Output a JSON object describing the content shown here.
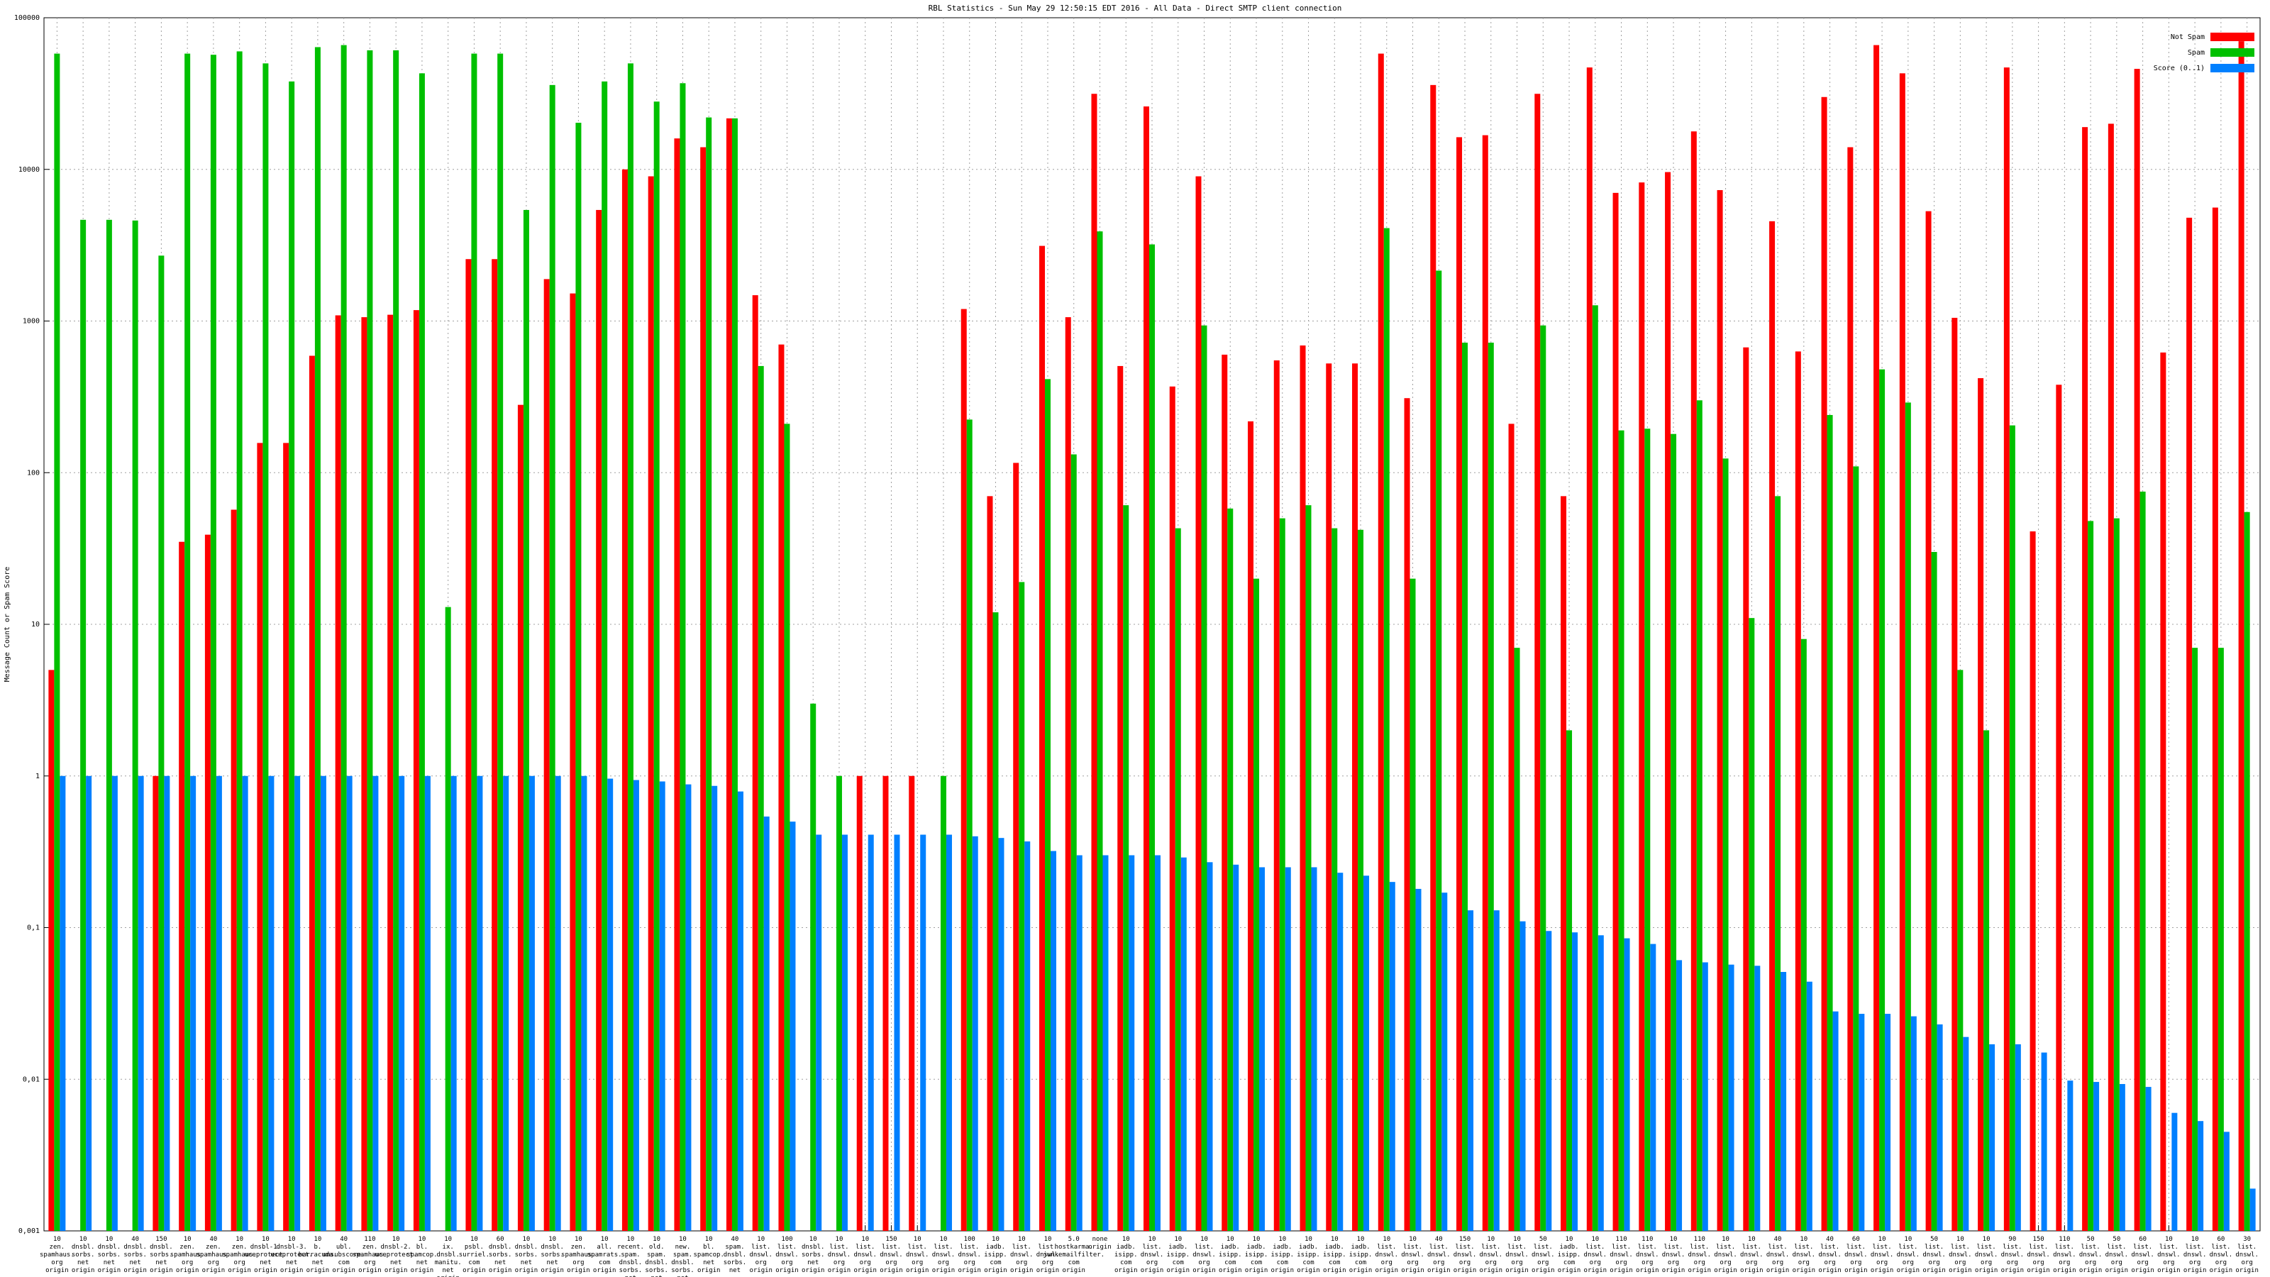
{
  "chart_data": {
    "type": "bar",
    "title": "RBL Statistics - Sun May 29 12:50:15 EDT 2016 - All Data - Direct SMTP client connection",
    "y_label": "Message Count or Spam Score",
    "ylog": true,
    "grid": true,
    "legend": "top-right",
    "ylim": [
      0.001,
      100000
    ],
    "yticks": [
      {
        "value": 0.001,
        "label": "0,001"
      },
      {
        "value": 0.01,
        "label": "0,01"
      },
      {
        "value": 0.1,
        "label": "0,1"
      },
      1,
      10,
      100,
      1000,
      10000,
      100000
    ],
    "categories": [
      [
        "10",
        "zen.",
        "spamhaus.",
        "org",
        "origin"
      ],
      [
        "10",
        "dnsbl.",
        "sorbs.",
        "net",
        "origin"
      ],
      [
        "10",
        "dnsbl.",
        "sorbs.",
        "net",
        "origin"
      ],
      [
        "40",
        "dnsbl.",
        "sorbs.",
        "net",
        "origin"
      ],
      [
        "150",
        "dnsbl.",
        "sorbs.",
        "net",
        "origin"
      ],
      [
        "10",
        "zen.",
        "spamhaus.",
        "org",
        "origin"
      ],
      [
        "40",
        "zen.",
        "spamhaus.",
        "org",
        "origin"
      ],
      [
        "10",
        "zen.",
        "spamhaus.",
        "org",
        "origin"
      ],
      [
        "10",
        "dnsbl-1.",
        "uceprotect.",
        "net",
        "origin"
      ],
      [
        "10",
        "dnsbl-3.",
        "uceprotect.",
        "net",
        "origin"
      ],
      [
        "10",
        "b.",
        "barracuda.",
        "net",
        "origin"
      ],
      [
        "40",
        "ubl.",
        "unsubscore.",
        "com",
        "origin"
      ],
      [
        "110",
        "zen.",
        "spamhaus.",
        "org",
        "origin"
      ],
      [
        "10",
        "dnsbl-2.",
        "uceprotect.",
        "net",
        "origin"
      ],
      [
        "10",
        "bl.",
        "spamcop.",
        "net",
        "origin"
      ],
      [
        "10",
        "ix.",
        "dnsbl.",
        "manitu.",
        "net",
        "origin"
      ],
      [
        "10",
        "psbl.",
        "surriel.",
        "com",
        "origin"
      ],
      [
        "60",
        "dnsbl.",
        "sorbs.",
        "net",
        "origin"
      ],
      [
        "10",
        "dnsbl.",
        "sorbs.",
        "net",
        "origin"
      ],
      [
        "10",
        "dnsbl.",
        "sorbs.",
        "net",
        "origin"
      ],
      [
        "10",
        "zen.",
        "spamhaus.",
        "org",
        "origin"
      ],
      [
        "10",
        "all.",
        "spamrats.",
        "com",
        "origin"
      ],
      [
        "10",
        "recent.",
        "spam.",
        "dnsbl.",
        "sorbs.",
        "net"
      ],
      [
        "10",
        "old.",
        "spam.",
        "dnsbl.",
        "sorbs.",
        "net"
      ],
      [
        "10",
        "new.",
        "spam.",
        "dnsbl.",
        "sorbs.",
        "net"
      ],
      [
        "10",
        "bl.",
        "spamcop.",
        "net",
        "origin"
      ],
      [
        "40",
        "spam.",
        "dnsbl.",
        "sorbs.",
        "net"
      ],
      [
        "10",
        "list.",
        "dnswl.",
        "org",
        "origin"
      ],
      [
        "100",
        "list.",
        "dnswl.",
        "org",
        "origin"
      ],
      [
        "10",
        "dnsbl.",
        "sorbs.",
        "net",
        "origin"
      ],
      [
        "10",
        "list.",
        "dnswl.",
        "org",
        "origin"
      ],
      [
        "10",
        "list.",
        "dnswl.",
        "org",
        "origin"
      ],
      [
        "150",
        "list.",
        "dnswl.",
        "org",
        "origin"
      ],
      [
        "10",
        "list.",
        "dnswl.",
        "org",
        "origin"
      ],
      [
        "10",
        "list.",
        "dnswl.",
        "org",
        "origin"
      ],
      [
        "100",
        "list.",
        "dnswl.",
        "org",
        "origin"
      ],
      [
        "10",
        "iadb.",
        "isipp.",
        "com",
        "origin"
      ],
      [
        "10",
        "list.",
        "dnswl.",
        "org",
        "origin"
      ],
      [
        "10",
        "list.",
        "dnswl.",
        "org",
        "origin"
      ],
      [
        "5.0",
        "hostkarma.",
        "junkemailfilter.",
        "com",
        "origin"
      ],
      [
        "none",
        "origin"
      ],
      [
        "10",
        "iadb.",
        "isipp.",
        "com",
        "origin"
      ],
      [
        "10",
        "list.",
        "dnswl.",
        "org",
        "origin"
      ],
      [
        "10",
        "iadb.",
        "isipp.",
        "com",
        "origin"
      ],
      [
        "10",
        "list.",
        "dnswl.",
        "org",
        "origin"
      ],
      [
        "10",
        "iadb.",
        "isipp.",
        "com",
        "origin"
      ],
      [
        "10",
        "iadb.",
        "isipp.",
        "com",
        "origin"
      ],
      [
        "10",
        "iadb.",
        "isipp.",
        "com",
        "origin"
      ],
      [
        "10",
        "iadb.",
        "isipp.",
        "com",
        "origin"
      ],
      [
        "10",
        "iadb.",
        "isipp.",
        "com",
        "origin"
      ],
      [
        "10",
        "iadb.",
        "isipp.",
        "com",
        "origin"
      ],
      [
        "10",
        "list.",
        "dnswl.",
        "org",
        "origin"
      ],
      [
        "10",
        "list.",
        "dnswl.",
        "org",
        "origin"
      ],
      [
        "40",
        "list.",
        "dnswl.",
        "org",
        "origin"
      ],
      [
        "150",
        "list.",
        "dnswl.",
        "org",
        "origin"
      ],
      [
        "10",
        "list.",
        "dnswl.",
        "org",
        "origin"
      ],
      [
        "10",
        "list.",
        "dnswl.",
        "org",
        "origin"
      ],
      [
        "50",
        "list.",
        "dnswl.",
        "org",
        "origin"
      ],
      [
        "10",
        "iadb.",
        "isipp.",
        "com",
        "origin"
      ],
      [
        "10",
        "list.",
        "dnswl.",
        "org",
        "origin"
      ],
      [
        "110",
        "list.",
        "dnswl.",
        "org",
        "origin"
      ],
      [
        "110",
        "list.",
        "dnswl.",
        "org",
        "origin"
      ],
      [
        "10",
        "list.",
        "dnswl.",
        "org",
        "origin"
      ],
      [
        "110",
        "list.",
        "dnswl.",
        "org",
        "origin"
      ],
      [
        "10",
        "list.",
        "dnswl.",
        "org",
        "origin"
      ],
      [
        "10",
        "list.",
        "dnswl.",
        "org",
        "origin"
      ],
      [
        "40",
        "list.",
        "dnswl.",
        "org",
        "origin"
      ],
      [
        "10",
        "list.",
        "dnswl.",
        "org",
        "origin"
      ],
      [
        "40",
        "list.",
        "dnswl.",
        "org",
        "origin"
      ],
      [
        "60",
        "list.",
        "dnswl.",
        "org",
        "origin"
      ],
      [
        "10",
        "list.",
        "dnswl.",
        "org",
        "origin"
      ],
      [
        "10",
        "list.",
        "dnswl.",
        "org",
        "origin"
      ],
      [
        "50",
        "list.",
        "dnswl.",
        "org",
        "origin"
      ],
      [
        "10",
        "list.",
        "dnswl.",
        "org",
        "origin"
      ],
      [
        "10",
        "list.",
        "dnswl.",
        "org",
        "origin"
      ],
      [
        "90",
        "list.",
        "dnswl.",
        "org",
        "origin"
      ],
      [
        "150",
        "list.",
        "dnswl.",
        "org",
        "origin"
      ],
      [
        "110",
        "list.",
        "dnswl.",
        "org",
        "origin"
      ],
      [
        "50",
        "list.",
        "dnswl.",
        "org",
        "origin"
      ],
      [
        "50",
        "list.",
        "dnswl.",
        "org",
        "origin"
      ],
      [
        "60",
        "list.",
        "dnswl.",
        "org",
        "origin"
      ],
      [
        "10",
        "list.",
        "dnswl.",
        "org",
        "origin"
      ],
      [
        "10",
        "list.",
        "dnswl.",
        "org",
        "origin"
      ],
      [
        "60",
        "list.",
        "dnswl.",
        "org",
        "origin"
      ],
      [
        "30",
        "list.",
        "dnswl.",
        "org",
        "origin"
      ]
    ],
    "series": [
      {
        "name": "Not Spam",
        "color": "#ff0000",
        "values": [
          5,
          null,
          null,
          null,
          1,
          35,
          39,
          57,
          157,
          157,
          590,
          1090,
          1060,
          1100,
          1180,
          null,
          2560,
          2560,
          280,
          1890,
          1520,
          5400,
          10000,
          9000,
          16000,
          14000,
          21700,
          1480,
          700,
          null,
          null,
          1,
          1,
          1,
          null,
          1200,
          70,
          116,
          3130,
          1060,
          31500,
          505,
          26000,
          370,
          9000,
          600,
          218,
          550,
          690,
          525,
          525,
          58000,
          310,
          36000,
          16300,
          16800,
          210,
          31500,
          70,
          47000,
          7000,
          8200,
          9600,
          17800,
          7300,
          670,
          4550,
          630,
          30000,
          14000,
          66000,
          43000,
          5300,
          1050,
          420,
          47000,
          41,
          380,
          19000,
          20000,
          46000,
          620,
          4800,
          5600,
          70000
        ]
      },
      {
        "name": "Spam",
        "color": "#00c000",
        "values": [
          58000,
          4650,
          4650,
          4600,
          2700,
          58000,
          57000,
          60000,
          50000,
          38000,
          64000,
          66000,
          61000,
          61000,
          43000,
          13,
          58000,
          58000,
          5400,
          36000,
          20300,
          38000,
          50000,
          28000,
          37000,
          22000,
          21700,
          505,
          210,
          3,
          1,
          null,
          null,
          null,
          1,
          224,
          12,
          19,
          414,
          132,
          3900,
          61,
          3200,
          43,
          935,
          58,
          20,
          50,
          61,
          43,
          42,
          4100,
          20,
          2150,
          720,
          720,
          7,
          935,
          2,
          1270,
          190,
          195,
          180,
          300,
          124,
          11,
          70,
          8,
          240,
          110,
          480,
          290,
          30,
          5,
          2,
          205,
          null,
          null,
          48,
          50,
          75,
          null,
          7,
          7,
          55
        ]
      },
      {
        "name": "Score (0..1)",
        "color": "#0080ff",
        "values": [
          1,
          1,
          1,
          1,
          1,
          1,
          1,
          1,
          1,
          1,
          1,
          1,
          1,
          1,
          1,
          1,
          1,
          1,
          1,
          1,
          1,
          0.96,
          0.94,
          0.92,
          0.88,
          0.86,
          0.79,
          0.54,
          0.5,
          0.41,
          0.41,
          0.41,
          0.41,
          0.41,
          0.41,
          0.4,
          0.39,
          0.37,
          0.32,
          0.3,
          0.3,
          0.3,
          0.3,
          0.29,
          0.27,
          0.26,
          0.25,
          0.25,
          0.25,
          0.23,
          0.22,
          0.2,
          0.18,
          0.17,
          0.13,
          0.13,
          0.11,
          0.095,
          0.093,
          0.089,
          0.085,
          0.078,
          0.061,
          0.059,
          0.057,
          0.056,
          0.051,
          0.044,
          0.028,
          0.027,
          0.027,
          0.026,
          0.023,
          0.019,
          0.017,
          0.017,
          0.015,
          0.0098,
          0.0096,
          0.0093,
          0.0089,
          0.006,
          0.0053,
          0.0045,
          0.0019
        ]
      }
    ]
  }
}
